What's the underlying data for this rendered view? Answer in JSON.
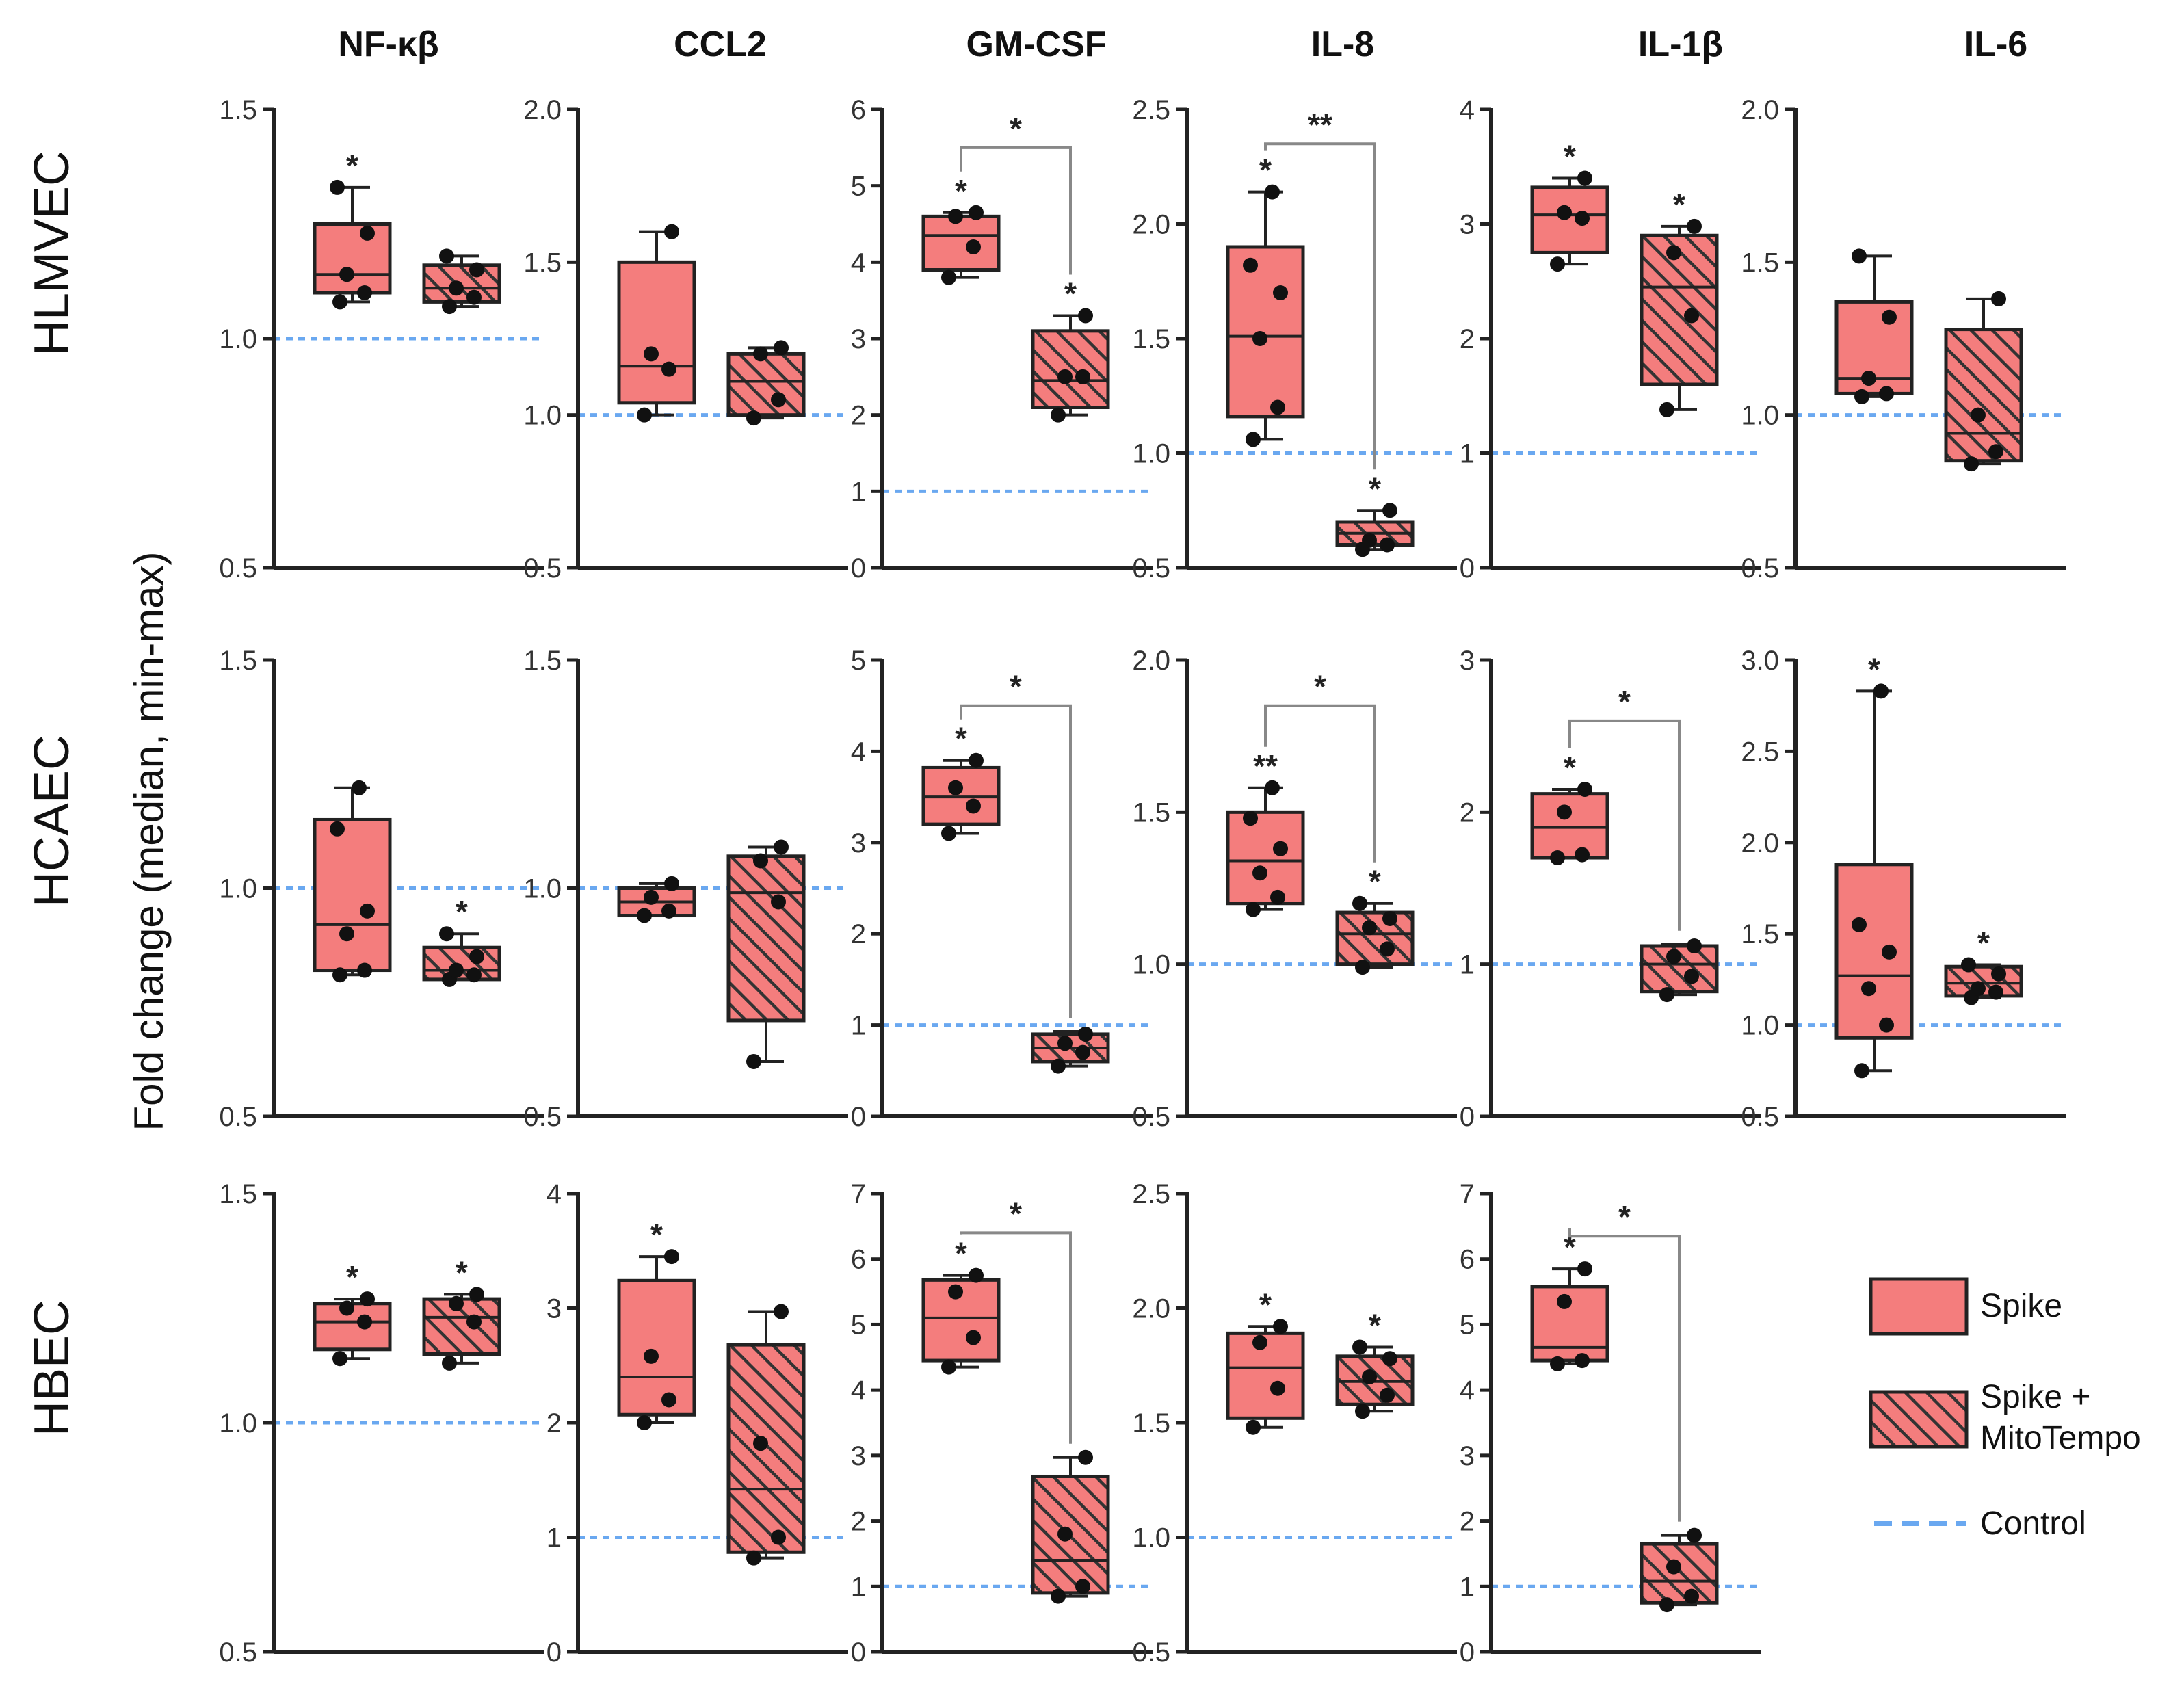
{
  "figure": {
    "y_axis_title": "Fold change (median, min-max)",
    "colors": {
      "spike": "#f47d7d",
      "mito_fill": "#f47d7d",
      "hatch": "#333333",
      "control": "#6aa8f0"
    }
  },
  "legend": {
    "spike": "Spike",
    "mito_line1": "Spike +",
    "mito_line2": "MitoTempo",
    "control": "Control"
  },
  "columns": [
    "NF-κβ",
    "CCL2",
    "GM-CSF",
    "IL-8",
    "IL-1β",
    "IL-6"
  ],
  "rows": [
    "HLMVEC",
    "HCAEC",
    "HBEC"
  ],
  "chart_data": [
    {
      "type": "box",
      "row": "HLMVEC",
      "title": "NF-κβ",
      "ylim": [
        0.5,
        1.5
      ],
      "ticks": [
        "0.5",
        "1.0",
        "1.5"
      ],
      "control": 1.0,
      "spike": {
        "min": 1.08,
        "q1": 1.1,
        "median": 1.14,
        "q3": 1.25,
        "max": 1.33,
        "points": [
          1.08,
          1.1,
          1.14,
          1.23,
          1.33
        ],
        "star": "*"
      },
      "mito": {
        "min": 1.07,
        "q1": 1.08,
        "median": 1.11,
        "q3": 1.16,
        "max": 1.18,
        "points": [
          1.07,
          1.09,
          1.11,
          1.15,
          1.18
        ],
        "star": ""
      },
      "bracket": null
    },
    {
      "type": "box",
      "row": "HLMVEC",
      "title": "CCL2",
      "ylim": [
        0.5,
        2.0
      ],
      "ticks": [
        "0.5",
        "1.0",
        "1.5",
        "2.0"
      ],
      "control": 1.0,
      "spike": {
        "min": 1.0,
        "q1": 1.04,
        "median": 1.16,
        "q3": 1.5,
        "max": 1.6,
        "points": [
          1.0,
          1.15,
          1.2,
          1.6
        ],
        "star": ""
      },
      "mito": {
        "min": 0.99,
        "q1": 1.0,
        "median": 1.11,
        "q3": 1.2,
        "max": 1.22,
        "points": [
          0.99,
          1.05,
          1.2,
          1.22
        ],
        "star": ""
      },
      "bracket": null
    },
    {
      "type": "box",
      "row": "HLMVEC",
      "title": "GM-CSF",
      "ylim": [
        0,
        6
      ],
      "ticks": [
        "0",
        "1",
        "2",
        "3",
        "4",
        "5",
        "6"
      ],
      "control": 1.0,
      "spike": {
        "min": 3.8,
        "q1": 3.9,
        "median": 4.35,
        "q3": 4.6,
        "max": 4.65,
        "points": [
          3.8,
          4.2,
          4.6,
          4.65
        ],
        "star": "*"
      },
      "mito": {
        "min": 2.0,
        "q1": 2.1,
        "median": 2.45,
        "q3": 3.1,
        "max": 3.3,
        "points": [
          2.0,
          2.5,
          2.5,
          3.3
        ],
        "star": "*"
      },
      "bracket": {
        "star": "*",
        "top": 5.5
      }
    },
    {
      "type": "box",
      "row": "HLMVEC",
      "title": "IL-8",
      "ylim": [
        0.5,
        2.5
      ],
      "ticks": [
        "0.5",
        "1.0",
        "1.5",
        "2.0",
        "2.5"
      ],
      "control": 1.0,
      "spike": {
        "min": 1.06,
        "q1": 1.16,
        "median": 1.51,
        "q3": 1.9,
        "max": 2.14,
        "points": [
          1.06,
          1.2,
          1.5,
          1.7,
          1.82,
          2.14
        ],
        "star": "*"
      },
      "mito": {
        "min": 0.58,
        "q1": 0.6,
        "median": 0.65,
        "q3": 0.7,
        "max": 0.75,
        "points": [
          0.58,
          0.6,
          0.62,
          0.75
        ],
        "star": "*"
      },
      "bracket": {
        "star": "**",
        "top": 2.35
      }
    },
    {
      "type": "box",
      "row": "HLMVEC",
      "title": "IL-1β",
      "ylim": [
        0,
        4
      ],
      "ticks": [
        "0",
        "1",
        "2",
        "3",
        "4"
      ],
      "control": 1.0,
      "spike": {
        "min": 2.65,
        "q1": 2.75,
        "median": 3.08,
        "q3": 3.32,
        "max": 3.4,
        "points": [
          2.65,
          3.05,
          3.1,
          3.4
        ],
        "star": "*"
      },
      "mito": {
        "min": 1.38,
        "q1": 1.6,
        "median": 2.45,
        "q3": 2.9,
        "max": 2.98,
        "points": [
          1.38,
          2.2,
          2.75,
          2.98
        ],
        "star": "*"
      },
      "bracket": null
    },
    {
      "type": "box",
      "row": "HLMVEC",
      "title": "IL-6",
      "ylim": [
        0.5,
        2.0
      ],
      "ticks": [
        "0.5",
        "1.0",
        "1.5",
        "2.0"
      ],
      "control": 1.0,
      "spike": {
        "min": 1.06,
        "q1": 1.07,
        "median": 1.12,
        "q3": 1.37,
        "max": 1.52,
        "points": [
          1.06,
          1.07,
          1.12,
          1.32,
          1.52
        ],
        "star": ""
      },
      "mito": {
        "min": 0.84,
        "q1": 0.85,
        "median": 0.94,
        "q3": 1.28,
        "max": 1.38,
        "points": [
          0.84,
          0.88,
          1.0,
          1.38
        ],
        "star": ""
      },
      "bracket": null
    },
    {
      "type": "box",
      "row": "HCAEC",
      "title": "NF-κβ",
      "ylim": [
        0.5,
        1.5
      ],
      "ticks": [
        "0.5",
        "1.0",
        "1.5"
      ],
      "control": 1.0,
      "spike": {
        "min": 0.81,
        "q1": 0.82,
        "median": 0.92,
        "q3": 1.15,
        "max": 1.22,
        "points": [
          0.81,
          0.82,
          0.9,
          0.95,
          1.13,
          1.22
        ],
        "star": ""
      },
      "mito": {
        "min": 0.8,
        "q1": 0.8,
        "median": 0.82,
        "q3": 0.87,
        "max": 0.9,
        "points": [
          0.8,
          0.81,
          0.82,
          0.85,
          0.9
        ],
        "star": "*"
      },
      "bracket": null
    },
    {
      "type": "box",
      "row": "HCAEC",
      "title": "CCL2",
      "ylim": [
        0.5,
        1.5
      ],
      "ticks": [
        "0.5",
        "1.0",
        "1.5"
      ],
      "control": 1.0,
      "spike": {
        "min": 0.94,
        "q1": 0.94,
        "median": 0.97,
        "q3": 1.0,
        "max": 1.01,
        "points": [
          0.94,
          0.95,
          0.98,
          1.01
        ],
        "star": ""
      },
      "mito": {
        "min": 0.62,
        "q1": 0.71,
        "median": 0.99,
        "q3": 1.07,
        "max": 1.09,
        "points": [
          0.62,
          0.97,
          1.06,
          1.09
        ],
        "star": ""
      },
      "bracket": null
    },
    {
      "type": "box",
      "row": "HCAEC",
      "title": "GM-CSF",
      "ylim": [
        0,
        5
      ],
      "ticks": [
        "0",
        "1",
        "2",
        "3",
        "4",
        "5"
      ],
      "control": 1.0,
      "spike": {
        "min": 3.1,
        "q1": 3.2,
        "median": 3.5,
        "q3": 3.82,
        "max": 3.9,
        "points": [
          3.1,
          3.4,
          3.6,
          3.9
        ],
        "star": "*"
      },
      "mito": {
        "min": 0.55,
        "q1": 0.6,
        "median": 0.75,
        "q3": 0.9,
        "max": 0.93,
        "points": [
          0.55,
          0.7,
          0.8,
          0.9
        ],
        "star": ""
      },
      "bracket": {
        "star": "*",
        "top": 4.5
      }
    },
    {
      "type": "box",
      "row": "HCAEC",
      "title": "IL-8",
      "ylim": [
        0.5,
        2.0
      ],
      "ticks": [
        "0.5",
        "1.0",
        "1.5",
        "2.0"
      ],
      "control": 1.0,
      "spike": {
        "min": 1.18,
        "q1": 1.2,
        "median": 1.34,
        "q3": 1.5,
        "max": 1.58,
        "points": [
          1.18,
          1.22,
          1.3,
          1.38,
          1.48,
          1.58
        ],
        "star": "**"
      },
      "mito": {
        "min": 0.99,
        "q1": 1.0,
        "median": 1.1,
        "q3": 1.17,
        "max": 1.2,
        "points": [
          0.99,
          1.05,
          1.12,
          1.15,
          1.2
        ],
        "star": "*"
      },
      "bracket": {
        "star": "*",
        "top": 1.85
      }
    },
    {
      "type": "box",
      "row": "HCAEC",
      "title": "IL-1β",
      "ylim": [
        0,
        3
      ],
      "ticks": [
        "0",
        "1",
        "2",
        "3"
      ],
      "control": 1.0,
      "spike": {
        "min": 1.7,
        "q1": 1.7,
        "median": 1.9,
        "q3": 2.12,
        "max": 2.15,
        "points": [
          1.7,
          1.72,
          2.0,
          2.15
        ],
        "star": "*"
      },
      "mito": {
        "min": 0.8,
        "q1": 0.82,
        "median": 1.0,
        "q3": 1.12,
        "max": 1.13,
        "points": [
          0.8,
          0.92,
          1.05,
          1.12
        ],
        "star": ""
      },
      "bracket": {
        "star": "*",
        "top": 2.6
      }
    },
    {
      "type": "box",
      "row": "HCAEC",
      "title": "IL-6",
      "ylim": [
        0.5,
        3.0
      ],
      "ticks": [
        "0.5",
        "1.0",
        "1.5",
        "2.0",
        "2.5",
        "3.0"
      ],
      "control": 1.0,
      "spike": {
        "min": 0.75,
        "q1": 0.93,
        "median": 1.27,
        "q3": 1.88,
        "max": 2.83,
        "points": [
          0.75,
          1.0,
          1.2,
          1.4,
          1.55,
          2.83
        ],
        "star": "*"
      },
      "mito": {
        "min": 1.15,
        "q1": 1.16,
        "median": 1.23,
        "q3": 1.32,
        "max": 1.33,
        "points": [
          1.15,
          1.18,
          1.2,
          1.28,
          1.33
        ],
        "star": "*"
      },
      "bracket": null
    },
    {
      "type": "box",
      "row": "HBEC",
      "title": "NF-κβ",
      "ylim": [
        0.5,
        1.5
      ],
      "ticks": [
        "0.5",
        "1.0",
        "1.5"
      ],
      "control": 1.0,
      "spike": {
        "min": 1.14,
        "q1": 1.16,
        "median": 1.22,
        "q3": 1.26,
        "max": 1.27,
        "points": [
          1.14,
          1.22,
          1.25,
          1.27
        ],
        "star": "*"
      },
      "mito": {
        "min": 1.13,
        "q1": 1.15,
        "median": 1.23,
        "q3": 1.27,
        "max": 1.28,
        "points": [
          1.13,
          1.22,
          1.26,
          1.28
        ],
        "star": "*"
      },
      "bracket": null
    },
    {
      "type": "box",
      "row": "HBEC",
      "title": "CCL2",
      "ylim": [
        0,
        4
      ],
      "ticks": [
        "0",
        "1",
        "2",
        "3",
        "4"
      ],
      "control": 1.0,
      "spike": {
        "min": 2.0,
        "q1": 2.07,
        "median": 2.4,
        "q3": 3.24,
        "max": 3.45,
        "points": [
          2.0,
          2.2,
          2.58,
          3.45
        ],
        "star": "*"
      },
      "mito": {
        "min": 0.82,
        "q1": 0.87,
        "median": 1.42,
        "q3": 2.68,
        "max": 2.97,
        "points": [
          0.82,
          1.0,
          1.82,
          2.97
        ],
        "star": ""
      },
      "bracket": null
    },
    {
      "type": "box",
      "row": "HBEC",
      "title": "GM-CSF",
      "ylim": [
        0,
        7
      ],
      "ticks": [
        "0",
        "1",
        "2",
        "3",
        "4",
        "5",
        "6",
        "7"
      ],
      "control": 1.0,
      "spike": {
        "min": 4.35,
        "q1": 4.45,
        "median": 5.1,
        "q3": 5.68,
        "max": 5.75,
        "points": [
          4.35,
          4.8,
          5.5,
          5.75
        ],
        "star": "*"
      },
      "mito": {
        "min": 0.85,
        "q1": 0.9,
        "median": 1.4,
        "q3": 2.68,
        "max": 2.97,
        "points": [
          0.85,
          1.0,
          1.8,
          2.97
        ],
        "star": ""
      },
      "bracket": {
        "star": "*",
        "top": 6.4
      }
    },
    {
      "type": "box",
      "row": "HBEC",
      "title": "IL-8",
      "ylim": [
        0.5,
        2.5
      ],
      "ticks": [
        "0.5",
        "1.0",
        "1.5",
        "2.0",
        "2.5"
      ],
      "control": 1.0,
      "spike": {
        "min": 1.48,
        "q1": 1.52,
        "median": 1.74,
        "q3": 1.89,
        "max": 1.92,
        "points": [
          1.48,
          1.65,
          1.85,
          1.92
        ],
        "star": "*"
      },
      "mito": {
        "min": 1.55,
        "q1": 1.58,
        "median": 1.68,
        "q3": 1.79,
        "max": 1.83,
        "points": [
          1.55,
          1.62,
          1.7,
          1.78,
          1.83
        ],
        "star": "*"
      },
      "bracket": null
    },
    {
      "type": "box",
      "row": "HBEC",
      "title": "IL-1β",
      "ylim": [
        0,
        7
      ],
      "ticks": [
        "0",
        "1",
        "2",
        "3",
        "4",
        "5",
        "6",
        "7"
      ],
      "control": 1.0,
      "spike": {
        "min": 4.4,
        "q1": 4.45,
        "median": 4.65,
        "q3": 5.58,
        "max": 5.85,
        "points": [
          4.4,
          4.45,
          5.35,
          5.85
        ],
        "star": "*"
      },
      "mito": {
        "min": 0.72,
        "q1": 0.75,
        "median": 1.08,
        "q3": 1.65,
        "max": 1.78,
        "points": [
          0.72,
          0.85,
          1.3,
          1.78
        ],
        "star": ""
      },
      "bracket": {
        "star": "*",
        "top": 6.35
      }
    }
  ]
}
